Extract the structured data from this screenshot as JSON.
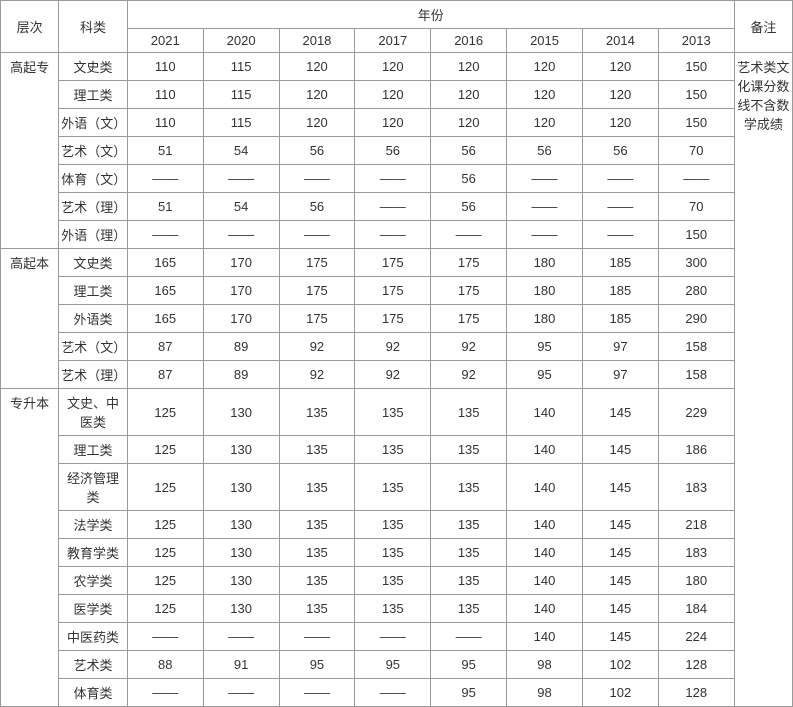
{
  "header": {
    "level": "层次",
    "category": "科类",
    "year": "年份",
    "note": "备注"
  },
  "years": [
    "2021",
    "2020",
    "2018",
    "2017",
    "2016",
    "2015",
    "2014",
    "2013"
  ],
  "note_text": "艺术类文化课分数线不含数学成绩",
  "dash": "——",
  "sections": [
    {
      "level": "高起专",
      "rows": [
        {
          "cat": "文史类",
          "v": [
            "110",
            "115",
            "120",
            "120",
            "120",
            "120",
            "120",
            "150"
          ]
        },
        {
          "cat": "理工类",
          "v": [
            "110",
            "115",
            "120",
            "120",
            "120",
            "120",
            "120",
            "150"
          ]
        },
        {
          "cat": "外语（文）",
          "v": [
            "110",
            "115",
            "120",
            "120",
            "120",
            "120",
            "120",
            "150"
          ]
        },
        {
          "cat": "艺术（文）",
          "v": [
            "51",
            "54",
            "56",
            "56",
            "56",
            "56",
            "56",
            "70"
          ]
        },
        {
          "cat": "体育（文）",
          "v": [
            "——",
            "——",
            "——",
            "——",
            "56",
            "——",
            "——",
            "——"
          ]
        },
        {
          "cat": "艺术（理）",
          "v": [
            "51",
            "54",
            "56",
            "——",
            "56",
            "——",
            "——",
            "70"
          ]
        },
        {
          "cat": "外语（理）",
          "v": [
            "——",
            "——",
            "——",
            "——",
            "——",
            "——",
            "——",
            "150"
          ]
        }
      ]
    },
    {
      "level": "高起本",
      "rows": [
        {
          "cat": "文史类",
          "v": [
            "165",
            "170",
            "175",
            "175",
            "175",
            "180",
            "185",
            "300"
          ]
        },
        {
          "cat": "理工类",
          "v": [
            "165",
            "170",
            "175",
            "175",
            "175",
            "180",
            "185",
            "280"
          ]
        },
        {
          "cat": "外语类",
          "v": [
            "165",
            "170",
            "175",
            "175",
            "175",
            "180",
            "185",
            "290"
          ]
        },
        {
          "cat": "艺术（文）",
          "v": [
            "87",
            "89",
            "92",
            "92",
            "92",
            "95",
            "97",
            "158"
          ]
        },
        {
          "cat": "艺术（理）",
          "v": [
            "87",
            "89",
            "92",
            "92",
            "92",
            "95",
            "97",
            "158"
          ]
        }
      ]
    },
    {
      "level": "专升本",
      "rows": [
        {
          "cat": "文史、中医类",
          "v": [
            "125",
            "130",
            "135",
            "135",
            "135",
            "140",
            "145",
            "229"
          ]
        },
        {
          "cat": "理工类",
          "v": [
            "125",
            "130",
            "135",
            "135",
            "135",
            "140",
            "145",
            "186"
          ]
        },
        {
          "cat": "经济管理类",
          "v": [
            "125",
            "130",
            "135",
            "135",
            "135",
            "140",
            "145",
            "183"
          ]
        },
        {
          "cat": "法学类",
          "v": [
            "125",
            "130",
            "135",
            "135",
            "135",
            "140",
            "145",
            "218"
          ]
        },
        {
          "cat": "教育学类",
          "v": [
            "125",
            "130",
            "135",
            "135",
            "135",
            "140",
            "145",
            "183"
          ]
        },
        {
          "cat": "农学类",
          "v": [
            "125",
            "130",
            "135",
            "135",
            "135",
            "140",
            "145",
            "180"
          ]
        },
        {
          "cat": "医学类",
          "v": [
            "125",
            "130",
            "135",
            "135",
            "135",
            "140",
            "145",
            "184"
          ]
        },
        {
          "cat": "中医药类",
          "v": [
            "——",
            "——",
            "——",
            "——",
            "——",
            "140",
            "145",
            "224"
          ]
        },
        {
          "cat": "艺术类",
          "v": [
            "88",
            "91",
            "95",
            "95",
            "95",
            "98",
            "102",
            "128"
          ]
        },
        {
          "cat": "体育类",
          "v": [
            "——",
            "——",
            "——",
            "——",
            "95",
            "98",
            "102",
            "128"
          ]
        }
      ]
    }
  ]
}
